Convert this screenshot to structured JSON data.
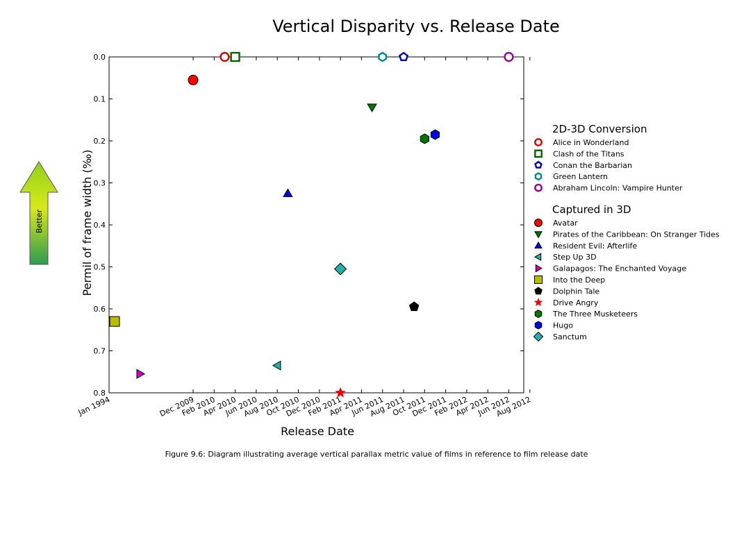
{
  "figure": {
    "caption": "Figure 9.6: Diagram illustrating average vertical parallax metric value of films in reference to film release date",
    "arrow_label": "Better",
    "arrow_colors": {
      "top": "#8fd11a",
      "middle": "#d8e81a",
      "bottom": "#2e9a52"
    }
  },
  "chart_data": {
    "type": "scatter",
    "title": "Vertical Disparity vs. Release Date",
    "xlabel": "Release Date",
    "ylabel": "Permil of frame width (‰)",
    "ylim": [
      0.0,
      0.8
    ],
    "y_inverted": true,
    "yticks": [
      "0.0",
      "0.1",
      "0.2",
      "0.3",
      "0.4",
      "0.5",
      "0.6",
      "0.7",
      "0.8"
    ],
    "xticks": [
      "Jan 1994",
      "Dec 2009",
      "Feb 2010",
      "Apr 2010",
      "Jun 2010",
      "Aug 2010",
      "Oct 2010",
      "Dec 2010",
      "Feb 2011",
      "Apr 2011",
      "Jun 2011",
      "Aug 2011",
      "Oct 2011",
      "Dec 2011",
      "Feb 2012",
      "Apr 2012",
      "Jun 2012",
      "Aug 2012"
    ],
    "x_axis_note": "non-linear date axis; gap between Jan 1994 and Dec 2009",
    "grid": false,
    "legend_placement": "right",
    "legend_groups": [
      {
        "title": "2D-3D Conversion",
        "series": [
          {
            "name": "Alice in Wonderland",
            "marker": "circle-open",
            "color": "#dd0000",
            "x": "Mar 2010",
            "y": 0.0
          },
          {
            "name": "Clash of the Titans",
            "marker": "square-open",
            "color": "#006400",
            "x": "Apr 2010",
            "y": 0.0
          },
          {
            "name": "Conan the Barbarian",
            "marker": "pentagon-open",
            "color": "#0000bb",
            "x": "Aug 2011",
            "y": 0.0
          },
          {
            "name": "Green Lantern",
            "marker": "hexagon-open",
            "color": "#008b8b",
            "x": "Jun 2011",
            "y": 0.0
          },
          {
            "name": "Abraham Lincoln: Vampire Hunter",
            "marker": "circle-open",
            "color": "#990099",
            "x": "Jun 2012",
            "y": 0.0
          }
        ]
      },
      {
        "title": "Captured in 3D",
        "series": [
          {
            "name": "Avatar",
            "marker": "circle",
            "color": "#ff0000",
            "x": "Dec 2009",
            "y": 0.055
          },
          {
            "name": "Pirates of the Caribbean: On Stranger Tides",
            "marker": "triangle-down",
            "color": "#007700",
            "x": "May 2011",
            "y": 0.12
          },
          {
            "name": "Resident Evil: Afterlife",
            "marker": "triangle-up",
            "color": "#0000ee",
            "x": "Sep 2010",
            "y": 0.325
          },
          {
            "name": "Step Up 3D",
            "marker": "triangle-left",
            "color": "#20b2aa",
            "x": "Aug 2010",
            "y": 0.735
          },
          {
            "name": "Galapagos: The Enchanted Voyage",
            "marker": "triangle-right",
            "color": "#cc00cc",
            "x": "Mar 1999",
            "y": 0.755
          },
          {
            "name": "Into the Deep",
            "marker": "square",
            "color": "#bbbb00",
            "x": "Jan 1994",
            "y": 0.63
          },
          {
            "name": "Dolphin Tale",
            "marker": "pentagon",
            "color": "#000000",
            "x": "Sep 2011",
            "y": 0.595
          },
          {
            "name": "Drive Angry",
            "marker": "star",
            "color": "#ee0000",
            "x": "Feb 2011",
            "y": 0.8
          },
          {
            "name": "The Three Musketeers",
            "marker": "hexagon",
            "color": "#007700",
            "x": "Oct 2011",
            "y": 0.195
          },
          {
            "name": "Hugo",
            "marker": "hexagon",
            "color": "#0000ee",
            "x": "Nov 2011",
            "y": 0.185
          },
          {
            "name": "Sanctum",
            "marker": "diamond",
            "color": "#20b2aa",
            "x": "Feb 2011",
            "y": 0.505
          }
        ]
      }
    ]
  }
}
